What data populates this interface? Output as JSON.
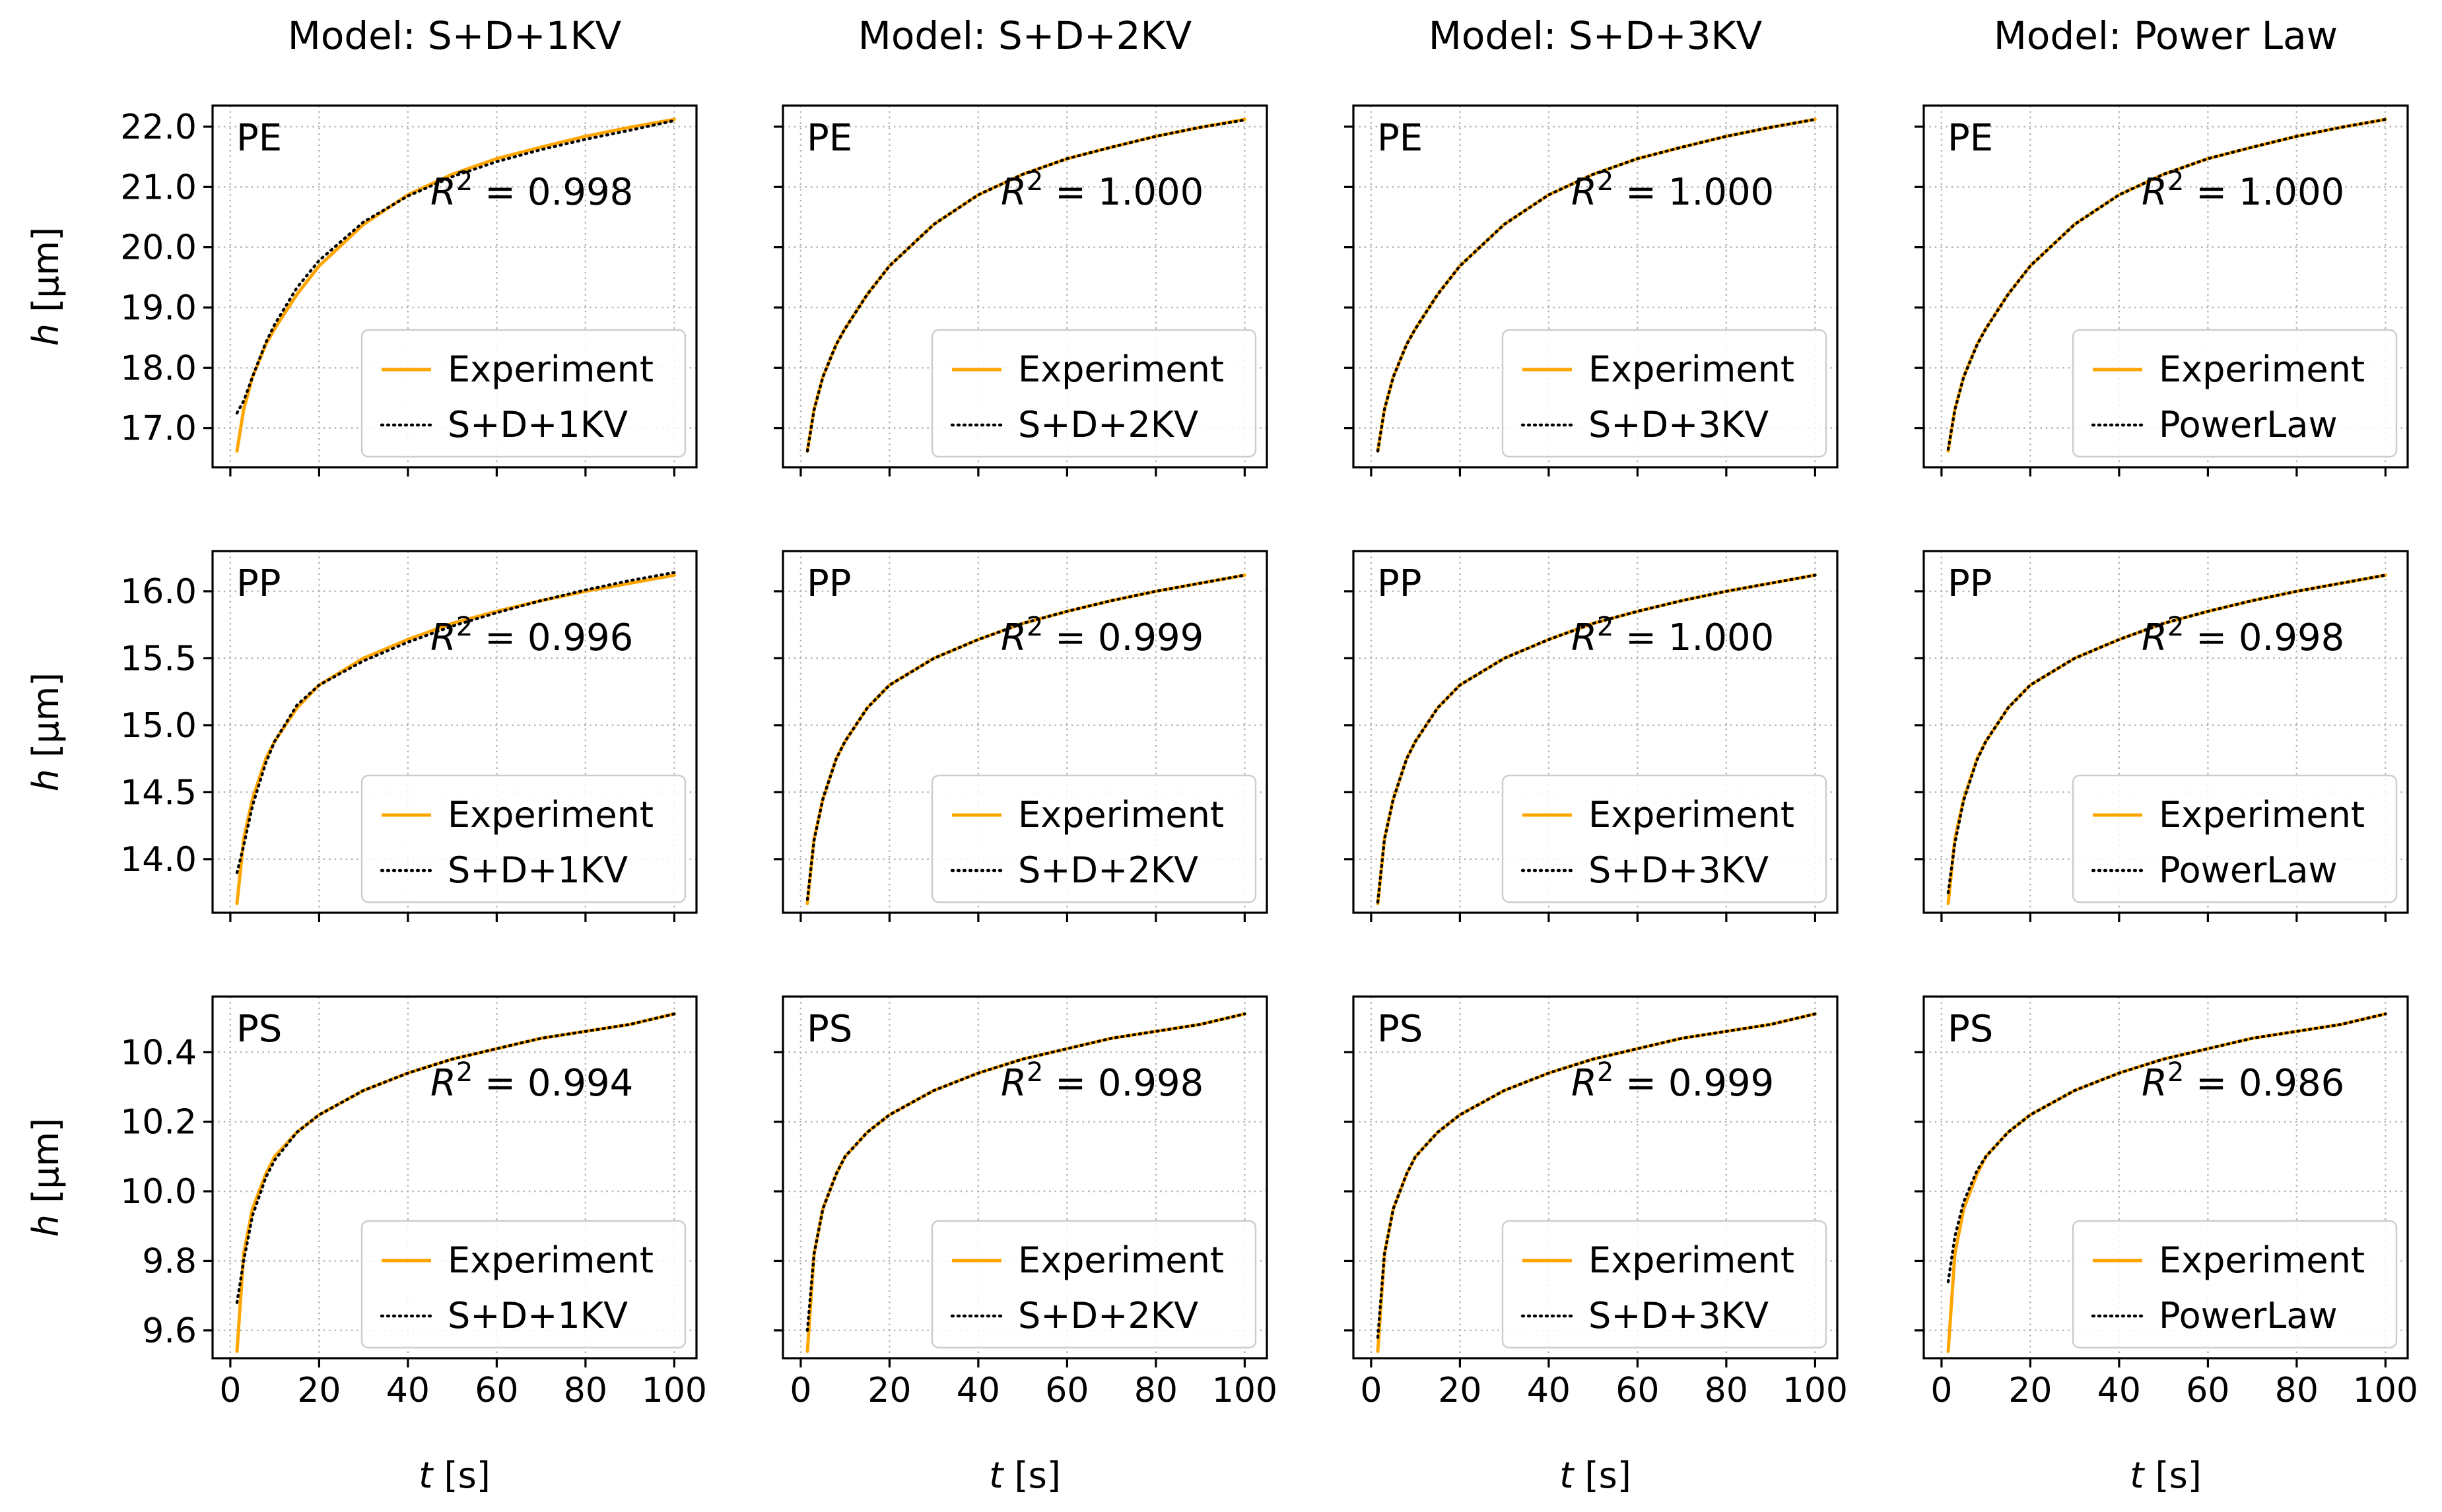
{
  "colors": {
    "experiment": "#ffa500",
    "model": "#000000",
    "grid": "#b0b0b0"
  },
  "chart_data": {
    "type": "line",
    "layout": "3x4 grid of small-multiple line charts",
    "grid": true,
    "legend_position": "lower-right",
    "columns": [
      {
        "title": "Model: S+D+1KV",
        "legend_model": "S+D+1KV"
      },
      {
        "title": "Model: S+D+2KV",
        "legend_model": "S+D+2KV"
      },
      {
        "title": "Model: S+D+3KV",
        "legend_model": "S+D+3KV"
      },
      {
        "title": "Model: Power Law",
        "legend_model": "PowerLaw"
      }
    ],
    "legend_experiment": "Experiment",
    "r2_prefix": "R",
    "r2_sup": "2",
    "xlabel_var": "t",
    "xlabel_unit": "[s]",
    "ylabel_var": "h",
    "ylabel_unit": "[μm]",
    "x_ticks": [
      "0",
      "20",
      "40",
      "60",
      "80",
      "100"
    ],
    "xlim": [
      -4,
      105
    ],
    "rows": [
      {
        "material": "PE",
        "ylim": [
          16.35,
          22.35
        ],
        "y_tick_values": [
          17,
          18,
          19,
          20,
          21,
          22
        ],
        "y_ticks": [
          "17.0",
          "18.0",
          "19.0",
          "20.0",
          "21.0",
          "22.0"
        ],
        "r2": [
          "0.998",
          "1.000",
          "1.000",
          "1.000"
        ],
        "series": [
          {
            "name": "Experiment",
            "x": [
              1.5,
              3,
              5,
              8,
              10,
              15,
              20,
              30,
              40,
              50,
              60,
              70,
              80,
              90,
              100
            ],
            "y": [
              16.62,
              17.31,
              17.85,
              18.39,
              18.65,
              19.22,
              19.69,
              20.38,
              20.87,
              21.21,
              21.47,
              21.66,
              21.84,
              21.99,
              22.12
            ]
          },
          {
            "name": "S+D+1KV",
            "x": [
              1.5,
              3,
              5,
              8,
              10,
              15,
              20,
              30,
              40,
              50,
              60,
              70,
              80,
              90,
              100
            ],
            "y": [
              17.25,
              17.45,
              17.85,
              18.42,
              18.72,
              19.33,
              19.78,
              20.42,
              20.85,
              21.17,
              21.42,
              21.62,
              21.79,
              21.94,
              22.1
            ]
          },
          {
            "name": "S+D+2KV",
            "x": [
              1.5,
              3,
              5,
              8,
              10,
              15,
              20,
              30,
              40,
              50,
              60,
              70,
              80,
              90,
              100
            ],
            "y": [
              16.62,
              17.3,
              17.85,
              18.39,
              18.65,
              19.22,
              19.69,
              20.38,
              20.87,
              21.21,
              21.47,
              21.66,
              21.84,
              21.99,
              22.11
            ]
          },
          {
            "name": "S+D+3KV",
            "x": [
              1.5,
              3,
              5,
              8,
              10,
              15,
              20,
              30,
              40,
              50,
              60,
              70,
              80,
              90,
              100
            ],
            "y": [
              16.62,
              17.31,
              17.85,
              18.39,
              18.65,
              19.22,
              19.69,
              20.38,
              20.87,
              21.21,
              21.47,
              21.66,
              21.84,
              21.99,
              22.12
            ]
          },
          {
            "name": "PowerLaw",
            "x": [
              1.5,
              3,
              5,
              8,
              10,
              15,
              20,
              30,
              40,
              50,
              60,
              70,
              80,
              90,
              100
            ],
            "y": [
              16.65,
              17.3,
              17.85,
              18.38,
              18.65,
              19.22,
              19.69,
              20.38,
              20.87,
              21.21,
              21.47,
              21.66,
              21.84,
              21.99,
              22.12
            ]
          }
        ]
      },
      {
        "material": "PP",
        "ylim": [
          13.6,
          16.3
        ],
        "y_tick_values": [
          14.0,
          14.5,
          15.0,
          15.5,
          16.0
        ],
        "y_ticks": [
          "14.0",
          "14.5",
          "15.0",
          "15.5",
          "16.0"
        ],
        "r2": [
          "0.996",
          "0.999",
          "1.000",
          "0.998"
        ],
        "series": [
          {
            "name": "Experiment",
            "x": [
              1.5,
              3,
              5,
              8,
              10,
              15,
              20,
              30,
              40,
              50,
              60,
              70,
              80,
              90,
              100
            ],
            "y": [
              13.67,
              14.15,
              14.45,
              14.75,
              14.88,
              15.13,
              15.3,
              15.5,
              15.64,
              15.76,
              15.85,
              15.93,
              16.0,
              16.06,
              16.12
            ]
          },
          {
            "name": "S+D+1KV",
            "x": [
              1.5,
              3,
              5,
              8,
              10,
              15,
              20,
              30,
              40,
              50,
              60,
              70,
              80,
              90,
              100
            ],
            "y": [
              13.9,
              14.1,
              14.4,
              14.72,
              14.88,
              15.15,
              15.3,
              15.48,
              15.62,
              15.74,
              15.84,
              15.93,
              16.01,
              16.08,
              16.14
            ]
          },
          {
            "name": "S+D+2KV",
            "x": [
              1.5,
              3,
              5,
              8,
              10,
              15,
              20,
              30,
              40,
              50,
              60,
              70,
              80,
              90,
              100
            ],
            "y": [
              13.7,
              14.14,
              14.45,
              14.75,
              14.88,
              15.13,
              15.3,
              15.5,
              15.64,
              15.76,
              15.85,
              15.93,
              16.0,
              16.06,
              16.12
            ]
          },
          {
            "name": "S+D+3KV",
            "x": [
              1.5,
              3,
              5,
              8,
              10,
              15,
              20,
              30,
              40,
              50,
              60,
              70,
              80,
              90,
              100
            ],
            "y": [
              13.68,
              14.15,
              14.45,
              14.75,
              14.88,
              15.13,
              15.3,
              15.5,
              15.64,
              15.76,
              15.85,
              15.93,
              16.0,
              16.06,
              16.12
            ]
          },
          {
            "name": "PowerLaw",
            "x": [
              1.5,
              3,
              5,
              8,
              10,
              15,
              20,
              30,
              40,
              50,
              60,
              70,
              80,
              90,
              100
            ],
            "y": [
              13.75,
              14.12,
              14.44,
              14.74,
              14.88,
              15.13,
              15.3,
              15.5,
              15.64,
              15.76,
              15.85,
              15.93,
              16.0,
              16.06,
              16.12
            ]
          }
        ]
      },
      {
        "material": "PS",
        "ylim": [
          9.52,
          10.56
        ],
        "y_tick_values": [
          9.6,
          9.8,
          10.0,
          10.2,
          10.4
        ],
        "y_ticks": [
          "9.6",
          "9.8",
          "10.0",
          "10.2",
          "10.4"
        ],
        "r2": [
          "0.994",
          "0.998",
          "0.999",
          "0.986"
        ],
        "series": [
          {
            "name": "Experiment",
            "x": [
              1.5,
              3,
              5,
              8,
              10,
              15,
              20,
              30,
              40,
              50,
              60,
              70,
              80,
              90,
              100
            ],
            "y": [
              9.54,
              9.82,
              9.95,
              10.05,
              10.1,
              10.17,
              10.22,
              10.29,
              10.34,
              10.38,
              10.41,
              10.44,
              10.46,
              10.48,
              10.51
            ]
          },
          {
            "name": "S+D+1KV",
            "x": [
              1.5,
              3,
              5,
              8,
              10,
              15,
              20,
              30,
              40,
              50,
              60,
              70,
              80,
              90,
              100
            ],
            "y": [
              9.68,
              9.8,
              9.93,
              10.04,
              10.09,
              10.17,
              10.22,
              10.29,
              10.34,
              10.38,
              10.41,
              10.44,
              10.46,
              10.48,
              10.51
            ]
          },
          {
            "name": "S+D+2KV",
            "x": [
              1.5,
              3,
              5,
              8,
              10,
              15,
              20,
              30,
              40,
              50,
              60,
              70,
              80,
              90,
              100
            ],
            "y": [
              9.6,
              9.82,
              9.95,
              10.05,
              10.1,
              10.17,
              10.22,
              10.29,
              10.34,
              10.38,
              10.41,
              10.44,
              10.46,
              10.48,
              10.51
            ]
          },
          {
            "name": "S+D+3KV",
            "x": [
              1.5,
              3,
              5,
              8,
              10,
              15,
              20,
              30,
              40,
              50,
              60,
              70,
              80,
              90,
              100
            ],
            "y": [
              9.58,
              9.82,
              9.95,
              10.05,
              10.1,
              10.17,
              10.22,
              10.29,
              10.34,
              10.38,
              10.41,
              10.44,
              10.46,
              10.48,
              10.51
            ]
          },
          {
            "name": "PowerLaw",
            "x": [
              1.5,
              3,
              5,
              8,
              10,
              15,
              20,
              30,
              40,
              50,
              60,
              70,
              80,
              90,
              100
            ],
            "y": [
              9.74,
              9.87,
              9.97,
              10.06,
              10.1,
              10.17,
              10.22,
              10.29,
              10.34,
              10.38,
              10.41,
              10.44,
              10.46,
              10.48,
              10.51
            ]
          }
        ]
      }
    ]
  }
}
